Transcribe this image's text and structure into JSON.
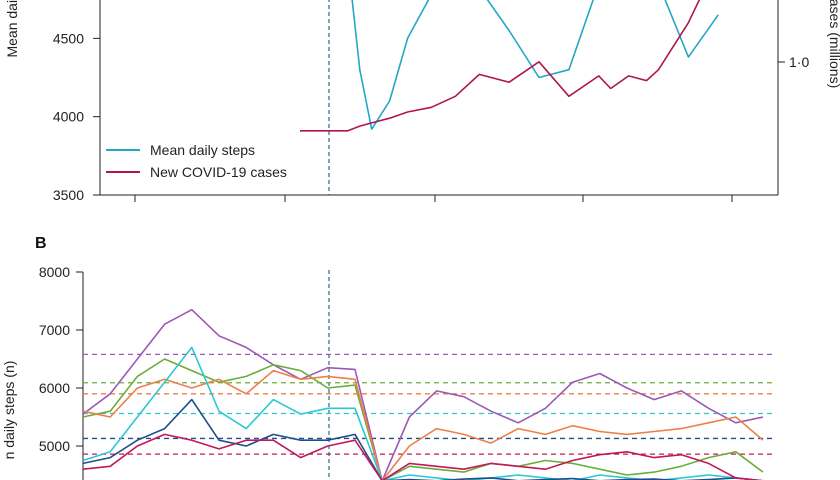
{
  "chart_data": [
    {
      "panel": "",
      "type": "line",
      "ylabel": "Mean daily steps",
      "ylabel_right": "cases (millions)",
      "ylim": [
        3500,
        5000
      ],
      "y_ticks": [
        3500,
        4000,
        4500
      ],
      "y_ticks_right": [
        {
          "label": "1·0",
          "value": 1.0
        }
      ],
      "legend_position": "bottom-left",
      "x": [
        0,
        5,
        10,
        15,
        20,
        25,
        28,
        30,
        32,
        35,
        38,
        42,
        46,
        50,
        55,
        60,
        65,
        70,
        72,
        75,
        78,
        80,
        85,
        90,
        95,
        100
      ],
      "series": [
        {
          "name": "Mean daily steps",
          "color": "#22a8c4",
          "values": [
            null,
            null,
            null,
            null,
            null,
            null,
            5000,
            4300,
            3920,
            4100,
            4500,
            4780,
            4800,
            4820,
            4550,
            4250,
            4300,
            4850,
            4950,
            5000,
            4950,
            4850,
            4380,
            4650,
            null,
            null
          ]
        },
        {
          "name": "New COVID-19 cases",
          "color": "#b0154f",
          "values": [
            null,
            null,
            null,
            null,
            3910,
            3910,
            3910,
            3940,
            3960,
            3990,
            4030,
            4060,
            4130,
            4270,
            4220,
            4350,
            4130,
            4260,
            4180,
            4260,
            4230,
            4300,
            4600,
            5000,
            4850,
            4900
          ]
        }
      ]
    },
    {
      "panel": "B",
      "type": "line",
      "ylabel": "n daily steps (n)",
      "ylim": [
        4400,
        8000
      ],
      "y_ticks": [
        5000,
        6000,
        7000,
        8000
      ],
      "x": [
        0,
        4,
        8,
        12,
        16,
        20,
        24,
        28,
        32,
        36,
        40,
        44,
        48,
        52,
        56,
        60,
        64,
        68,
        72,
        76,
        80,
        84,
        88,
        92,
        96,
        100
      ],
      "reference_lines": [
        {
          "color": "#9b59b6",
          "value": 6580
        },
        {
          "color": "#6aae3a",
          "value": 6090
        },
        {
          "color": "#ee7f4a",
          "value": 5900
        },
        {
          "color": "#2ec7d4",
          "value": 5560
        },
        {
          "color": "#1f4e8c",
          "value": 5130
        },
        {
          "color": "#c2185b",
          "value": 4860
        }
      ],
      "series": [
        {
          "color": "#9b59b6",
          "values": [
            5550,
            5900,
            6500,
            7100,
            7350,
            6900,
            6700,
            6400,
            6150,
            6350,
            6320,
            4400,
            5500,
            5950,
            5850,
            5600,
            5400,
            5650,
            6100,
            6250,
            6000,
            5800,
            5950,
            5650,
            5400,
            5500
          ]
        },
        {
          "color": "#6aae3a",
          "values": [
            5500,
            5600,
            6200,
            6500,
            6300,
            6100,
            6200,
            6400,
            6300,
            6000,
            6050,
            4400,
            4650,
            4600,
            4550,
            4700,
            4650,
            4750,
            4700,
            4600,
            4500,
            4550,
            4650,
            4800,
            4900,
            4550
          ]
        },
        {
          "color": "#ee7f4a",
          "values": [
            5600,
            5500,
            6000,
            6150,
            6000,
            6150,
            5900,
            6300,
            6150,
            6200,
            6150,
            4400,
            5000,
            5300,
            5200,
            5050,
            5300,
            5200,
            5350,
            5250,
            5200,
            5250,
            5300,
            5400,
            5500,
            5100
          ]
        },
        {
          "color": "#2ec7d4",
          "values": [
            4750,
            4900,
            5500,
            6100,
            6700,
            5600,
            5300,
            5800,
            5550,
            5650,
            5650,
            4400,
            4500,
            4450,
            4400,
            4450,
            4500,
            4450,
            4400,
            4500,
            4450,
            4400,
            4450,
            4500,
            4450,
            4400
          ]
        },
        {
          "color": "#1f4e8c",
          "values": [
            4700,
            4800,
            5100,
            5300,
            5800,
            5100,
            5000,
            5200,
            5100,
            5100,
            5200,
            4400,
            4420,
            4400,
            4430,
            4450,
            4400,
            4420,
            4440,
            4400,
            4420,
            4430,
            4400,
            4420,
            4450,
            4400
          ]
        },
        {
          "color": "#c2185b",
          "values": [
            4600,
            4650,
            5000,
            5200,
            5100,
            4950,
            5100,
            5100,
            4800,
            5000,
            5100,
            4400,
            4700,
            4650,
            4600,
            4700,
            4650,
            4600,
            4750,
            4850,
            4900,
            4800,
            4850,
            4700,
            4450,
            4400
          ]
        }
      ]
    }
  ]
}
